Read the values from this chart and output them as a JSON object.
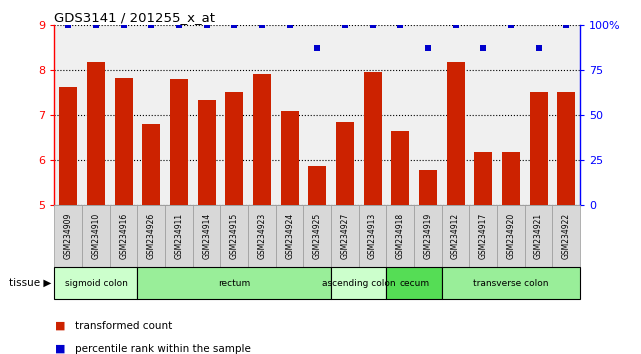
{
  "title": "GDS3141 / 201255_x_at",
  "samples": [
    "GSM234909",
    "GSM234910",
    "GSM234916",
    "GSM234926",
    "GSM234911",
    "GSM234914",
    "GSM234915",
    "GSM234923",
    "GSM234924",
    "GSM234925",
    "GSM234927",
    "GSM234913",
    "GSM234918",
    "GSM234919",
    "GSM234912",
    "GSM234917",
    "GSM234920",
    "GSM234921",
    "GSM234922"
  ],
  "transformed_count": [
    7.62,
    8.18,
    7.82,
    6.8,
    7.8,
    7.33,
    7.52,
    7.9,
    7.1,
    5.88,
    6.85,
    7.95,
    6.65,
    5.78,
    8.18,
    6.18,
    6.18,
    7.5,
    7.5
  ],
  "percentile_rank": [
    100,
    100,
    100,
    100,
    100,
    100,
    100,
    100,
    100,
    87,
    100,
    100,
    100,
    87,
    100,
    87,
    100,
    87,
    100
  ],
  "tissue_groups": [
    {
      "label": "sigmoid colon",
      "start": 0,
      "end": 3,
      "color": "#ccffcc"
    },
    {
      "label": "rectum",
      "start": 3,
      "end": 10,
      "color": "#99ee99"
    },
    {
      "label": "ascending colon",
      "start": 10,
      "end": 12,
      "color": "#ccffcc"
    },
    {
      "label": "cecum",
      "start": 12,
      "end": 14,
      "color": "#55dd55"
    },
    {
      "label": "transverse colon",
      "start": 14,
      "end": 19,
      "color": "#99ee99"
    }
  ],
  "ylim_left": [
    5,
    9
  ],
  "ylim_right": [
    0,
    100
  ],
  "yticks_left": [
    5,
    6,
    7,
    8,
    9
  ],
  "yticks_right": [
    0,
    25,
    50,
    75,
    100
  ],
  "bar_color": "#cc2200",
  "dot_color": "#0000cc",
  "legend_items": [
    {
      "color": "#cc2200",
      "label": "transformed count"
    },
    {
      "color": "#0000cc",
      "label": "percentile rank within the sample"
    }
  ]
}
